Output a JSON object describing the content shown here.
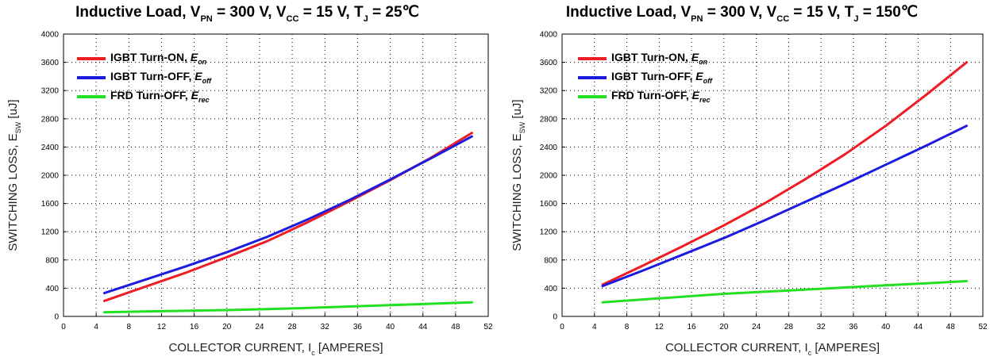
{
  "chart_data": [
    {
      "type": "line",
      "title": {
        "prefix": "Inductive Load, V",
        "sub1": "PN",
        "mid1": " = 300 V, V",
        "sub2": "CC",
        "mid2": " = 15 V, T",
        "sub3": "J",
        "suffix": " = 25℃"
      },
      "xlabel": {
        "text": "COLLECTOR CURRENT, I",
        "sub": "c",
        "suffix": " [AMPERES]"
      },
      "ylabel": {
        "text": "SWITCHING LOSS, E",
        "sub": "SW",
        "suffix": " [uJ]"
      },
      "xlim": [
        0,
        52
      ],
      "ylim": [
        0,
        4000
      ],
      "xticks": [
        0,
        4,
        8,
        12,
        16,
        20,
        24,
        28,
        32,
        36,
        40,
        44,
        48,
        52
      ],
      "yticks": [
        0,
        400,
        800,
        1200,
        1600,
        2000,
        2400,
        2800,
        3200,
        3600,
        4000
      ],
      "grid": true,
      "legend_position": "top-left",
      "series": [
        {
          "name": "IGBT Turn-ON, ",
          "sym": "E",
          "sub": "on",
          "color": "#ee1c24",
          "x": [
            5,
            10,
            15,
            20,
            25,
            30,
            35,
            40,
            45,
            50
          ],
          "y": [
            220,
            420,
            620,
            840,
            1070,
            1340,
            1630,
            1930,
            2250,
            2600
          ]
        },
        {
          "name": "IGBT Turn-OFF, ",
          "sym": "E",
          "sub": "off",
          "color": "#1c1ce0",
          "x": [
            5,
            10,
            15,
            20,
            25,
            30,
            35,
            40,
            45,
            50
          ],
          "y": [
            330,
            520,
            710,
            910,
            1130,
            1380,
            1650,
            1940,
            2240,
            2550
          ]
        },
        {
          "name": "FRD Turn-OFF, ",
          "sym": "E",
          "sub": "rec",
          "color": "#22e022",
          "x": [
            5,
            10,
            15,
            20,
            25,
            30,
            35,
            40,
            45,
            50
          ],
          "y": [
            60,
            70,
            80,
            90,
            105,
            120,
            140,
            160,
            180,
            200
          ]
        }
      ]
    },
    {
      "type": "line",
      "title": {
        "prefix": "Inductive Load, V",
        "sub1": "PN",
        "mid1": " = 300 V, V",
        "sub2": "CC",
        "mid2": " = 15 V, T",
        "sub3": "J",
        "suffix": " = 150℃"
      },
      "xlabel": {
        "text": "COLLECTOR CURRENT, I",
        "sub": "c",
        "suffix": " [AMPERES]"
      },
      "ylabel": {
        "text": "SWITCHING LOSS, E",
        "sub": "SW",
        "suffix": " [uJ]"
      },
      "xlim": [
        0,
        52
      ],
      "ylim": [
        0,
        4000
      ],
      "xticks": [
        0,
        4,
        8,
        12,
        16,
        20,
        24,
        28,
        32,
        36,
        40,
        44,
        48,
        52
      ],
      "yticks": [
        0,
        400,
        800,
        1200,
        1600,
        2000,
        2400,
        2800,
        3200,
        3600,
        4000
      ],
      "grid": true,
      "legend_position": "top-left",
      "series": [
        {
          "name": "IGBT Turn-ON, ",
          "sym": "E",
          "sub": "on",
          "color": "#ee1c24",
          "x": [
            5,
            10,
            15,
            20,
            25,
            30,
            35,
            40,
            45,
            50
          ],
          "y": [
            450,
            720,
            1000,
            1290,
            1600,
            1940,
            2300,
            2700,
            3140,
            3600
          ]
        },
        {
          "name": "IGBT Turn-OFF, ",
          "sym": "E",
          "sub": "off",
          "color": "#1c1ce0",
          "x": [
            5,
            10,
            15,
            20,
            25,
            30,
            35,
            40,
            45,
            50
          ],
          "y": [
            430,
            650,
            880,
            1110,
            1360,
            1620,
            1880,
            2150,
            2420,
            2700
          ]
        },
        {
          "name": "FRD Turn-OFF, ",
          "sym": "E",
          "sub": "rec",
          "color": "#22e022",
          "x": [
            5,
            10,
            15,
            20,
            25,
            30,
            35,
            40,
            45,
            50
          ],
          "y": [
            200,
            240,
            280,
            320,
            350,
            380,
            410,
            440,
            470,
            500
          ]
        }
      ]
    }
  ]
}
